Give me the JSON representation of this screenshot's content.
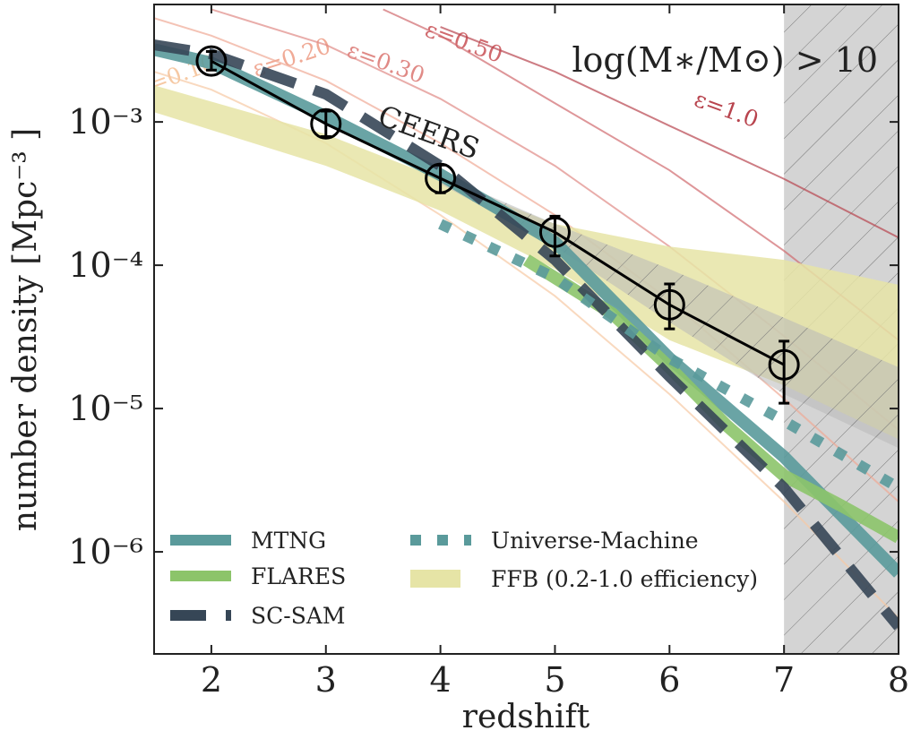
{
  "chart_data": {
    "type": "line",
    "yscale": "log",
    "xlabel": "redshift",
    "ylabel": "number density [Mpc⁻³ ]",
    "annotation": "log(M∗/M⊙) > 10",
    "legend": "lower left",
    "xlim": [
      1.5,
      8
    ],
    "xticks": [
      2,
      3,
      4,
      5,
      6,
      7,
      8
    ],
    "ylim": [
      1.94e-07,
      0.0066
    ],
    "yticks": [
      {
        "value": 0.001,
        "label": "10⁻³"
      },
      {
        "value": 0.0001,
        "label": "10⁻⁴"
      },
      {
        "value": 1e-05,
        "label": "10⁻⁵"
      },
      {
        "value": 1e-06,
        "label": "10⁻⁶"
      }
    ],
    "series": [
      {
        "name": "MTNG",
        "color": "#5a9a9b",
        "style": "solid",
        "x": [
          1.5,
          2,
          3,
          4,
          5,
          6,
          7,
          8
        ],
        "values": [
          0.0032,
          0.00258,
          0.00109,
          0.000428,
          0.000145,
          2.24e-05,
          4.6e-06,
          7.1e-07
        ]
      },
      {
        "name": "FLARES",
        "color": "#8cc46a",
        "style": "solid",
        "x": [
          4.75,
          5.5,
          6,
          6.5,
          7,
          7.5,
          8
        ],
        "values": [
          0.000109,
          4.6e-05,
          1.94e-05,
          7.6e-06,
          3.4e-06,
          2.1e-06,
          1.26e-06
        ]
      },
      {
        "name": "SC-SAM",
        "color": "#364656",
        "style": "dashed",
        "x": [
          1.5,
          2,
          3,
          4,
          5,
          6,
          7,
          8
        ],
        "values": [
          0.00345,
          0.00298,
          0.00156,
          0.000494,
          0.000109,
          1.67e-05,
          2.8e-06,
          3e-07
        ]
      },
      {
        "name": "Universe-Machine",
        "color": "#5a9a9b",
        "style": "dotted",
        "x": [
          4,
          5,
          6,
          7,
          8
        ],
        "values": [
          0.000194,
          8.2e-05,
          2.24e-05,
          8.2e-06,
          2.8e-06
        ]
      },
      {
        "name": "FFB (0.2-1.0 efficiency)",
        "color": "#e6e4a6",
        "style": "band",
        "x": [
          1.5,
          3,
          4,
          5,
          6,
          7,
          8
        ],
        "lower": [
          0.00117,
          0.000494,
          0.00024,
          9.4e-05,
          3e-05,
          1.45e-05,
          6.1e-06
        ],
        "upper": [
          0.0018,
          0.00082,
          0.0004,
          0.000194,
          0.000135,
          0.000109,
          7.3e-05
        ]
      },
      {
        "name": "CEERS",
        "color": "#000000",
        "style": "errorbar",
        "x": [
          2,
          3,
          4,
          5,
          6,
          7
        ],
        "values": [
          0.00266,
          0.00097,
          0.000404,
          0.00017,
          5.3e-05,
          2.02e-05
        ],
        "lower": [
          0.0023,
          0.00079,
          0.00032,
          0.000116,
          3.6e-05,
          1.09e-05
        ],
        "upper": [
          0.0031,
          0.00119,
          0.0005,
          0.00022,
          7.4e-05,
          2.95e-05
        ]
      }
    ],
    "ceers_band": {
      "color": "#b8b8b8",
      "x": [
        4,
        5,
        6,
        7,
        8
      ],
      "lower": [
        0.00037,
        0.000135,
        4e-05,
        1.26e-05,
        5.3e-06
      ],
      "upper": [
        0.000428,
        0.000194,
        9.4e-05,
        4.3e-05,
        1.94e-05
      ]
    },
    "shaded_xrange": [
      7,
      8
    ],
    "efficiency_curves": [
      {
        "name": "ε=0.10",
        "color": "#f6c9a4",
        "x": [
          1.5,
          2,
          3,
          4,
          5,
          6,
          7,
          8
        ],
        "values": [
          0.00224,
          0.00168,
          0.00071,
          0.000224,
          6.1e-05,
          1.26e-05,
          2.24e-06,
          3.45e-07
        ]
      },
      {
        "name": "ε=0.20",
        "color": "#f0aa96",
        "x": [
          1.5,
          2,
          3,
          4,
          5,
          6,
          7,
          8
        ],
        "values": [
          0.0053,
          0.004,
          0.00194,
          0.00071,
          0.000224,
          5.7e-05,
          1.17e-05,
          2.24e-06
        ]
      },
      {
        "name": "ε=0.30",
        "color": "#e08a86",
        "x": [
          2,
          3,
          4,
          5,
          6,
          7,
          8
        ],
        "values": [
          0.0061,
          0.00345,
          0.00145,
          0.000494,
          0.000135,
          3.2e-05,
          7.1e-06
        ]
      },
      {
        "name": "ε=0.50",
        "color": "#d06a6e",
        "x": [
          3.5,
          4,
          5,
          6,
          7,
          8
        ],
        "values": [
          0.0061,
          0.004,
          0.00135,
          0.00046,
          0.000126,
          3e-05
        ]
      },
      {
        "name": "ε=1.0",
        "color": "#b8444e",
        "x": [
          4,
          5,
          6,
          7,
          8
        ],
        "values": [
          0.0046,
          0.00224,
          0.00094,
          0.0004,
          0.000156
        ]
      }
    ]
  }
}
